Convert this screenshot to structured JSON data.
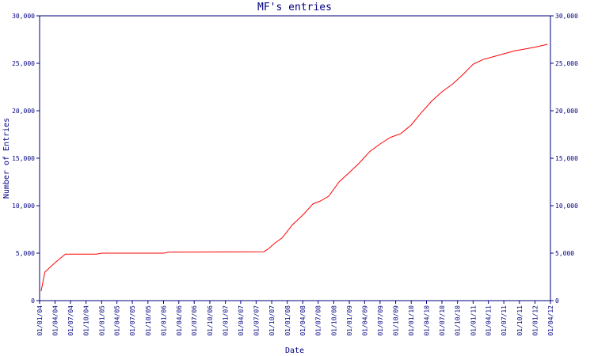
{
  "chart_data": {
    "type": "line",
    "title": "MF's entries",
    "x_label": "Date",
    "y_label": "Number of Entries",
    "x": [
      "2004-01-10",
      "2004-02-01",
      "2004-04-01",
      "2004-06-01",
      "2004-12-01",
      "2005-01-01",
      "2006-01-01",
      "2006-02-01",
      "2007-08-15",
      "2007-09-15",
      "2007-10-15",
      "2007-12-01",
      "2008-02-01",
      "2008-04-01",
      "2008-06-01",
      "2008-07-15",
      "2008-09-01",
      "2008-11-01",
      "2009-01-01",
      "2009-03-01",
      "2009-05-01",
      "2009-07-01",
      "2009-09-01",
      "2009-11-01",
      "2010-01-01",
      "2010-03-01",
      "2010-05-01",
      "2010-07-01",
      "2010-09-01",
      "2010-11-01",
      "2011-01-01",
      "2011-03-01",
      "2011-05-01",
      "2011-07-01",
      "2011-09-01",
      "2011-11-01",
      "2012-01-01",
      "2012-03-15"
    ],
    "series": [
      {
        "name": "entries",
        "color": "#ff0000",
        "values": [
          1000,
          3000,
          4000,
          4900,
          4900,
          5000,
          5000,
          5100,
          5150,
          5500,
          6000,
          6600,
          8000,
          9000,
          10200,
          10500,
          11000,
          12500,
          13500,
          14500,
          15700,
          16500,
          17200,
          17600,
          18500,
          19800,
          21000,
          22000,
          22800,
          23800,
          24900,
          25400,
          25700,
          26000,
          26300,
          26500,
          26700,
          27000
        ]
      }
    ],
    "xlim": [
      "2004-01-01",
      "2012-04-01"
    ],
    "xticks": [
      {
        "value": "2004-01-01",
        "label": "01/01/04"
      },
      {
        "value": "2004-04-01",
        "label": "01/04/04"
      },
      {
        "value": "2004-07-01",
        "label": "01/07/04"
      },
      {
        "value": "2004-10-01",
        "label": "01/10/04"
      },
      {
        "value": "2005-01-01",
        "label": "01/01/05"
      },
      {
        "value": "2005-04-01",
        "label": "01/04/05"
      },
      {
        "value": "2005-07-01",
        "label": "01/07/05"
      },
      {
        "value": "2005-10-01",
        "label": "01/10/05"
      },
      {
        "value": "2006-01-01",
        "label": "01/01/06"
      },
      {
        "value": "2006-04-01",
        "label": "01/04/06"
      },
      {
        "value": "2006-07-01",
        "label": "01/07/06"
      },
      {
        "value": "2006-10-01",
        "label": "01/10/06"
      },
      {
        "value": "2007-01-01",
        "label": "01/01/07"
      },
      {
        "value": "2007-04-01",
        "label": "01/04/07"
      },
      {
        "value": "2007-07-01",
        "label": "01/07/07"
      },
      {
        "value": "2007-10-01",
        "label": "01/10/07"
      },
      {
        "value": "2008-01-01",
        "label": "01/01/08"
      },
      {
        "value": "2008-04-01",
        "label": "01/04/08"
      },
      {
        "value": "2008-07-01",
        "label": "01/07/08"
      },
      {
        "value": "2008-10-01",
        "label": "01/10/08"
      },
      {
        "value": "2009-01-01",
        "label": "01/01/09"
      },
      {
        "value": "2009-04-01",
        "label": "01/04/09"
      },
      {
        "value": "2009-07-01",
        "label": "01/07/09"
      },
      {
        "value": "2009-10-01",
        "label": "01/10/09"
      },
      {
        "value": "2010-01-01",
        "label": "01/01/10"
      },
      {
        "value": "2010-04-01",
        "label": "01/04/10"
      },
      {
        "value": "2010-07-01",
        "label": "01/07/10"
      },
      {
        "value": "2010-10-01",
        "label": "01/10/10"
      },
      {
        "value": "2011-01-01",
        "label": "01/01/11"
      },
      {
        "value": "2011-04-01",
        "label": "01/04/11"
      },
      {
        "value": "2011-07-01",
        "label": "01/07/11"
      },
      {
        "value": "2011-10-01",
        "label": "01/10/11"
      },
      {
        "value": "2012-01-01",
        "label": "01/01/12"
      },
      {
        "value": "2012-04-01",
        "label": "01/04/12"
      }
    ],
    "ylim": [
      0,
      30000
    ],
    "yticks": [
      0,
      {
        "value": 5000,
        "label": "5,000"
      },
      {
        "value": 10000,
        "label": "10,000"
      },
      {
        "value": 15000,
        "label": "15,000"
      },
      {
        "value": 20000,
        "label": "20,000"
      },
      {
        "value": 25000,
        "label": "25,000"
      },
      {
        "value": 30000,
        "label": "30,000"
      }
    ],
    "y2lim": [
      0,
      30000
    ],
    "y2ticks": [
      0,
      {
        "value": 5000,
        "label": "5,000"
      },
      {
        "value": 10000,
        "label": "10,000"
      },
      {
        "value": 15000,
        "label": "15,000"
      },
      {
        "value": 20000,
        "label": "20,000"
      },
      {
        "value": 25000,
        "label": "25,000"
      },
      {
        "value": 30000,
        "label": "30,000"
      }
    ],
    "axis_color": "#000080"
  }
}
